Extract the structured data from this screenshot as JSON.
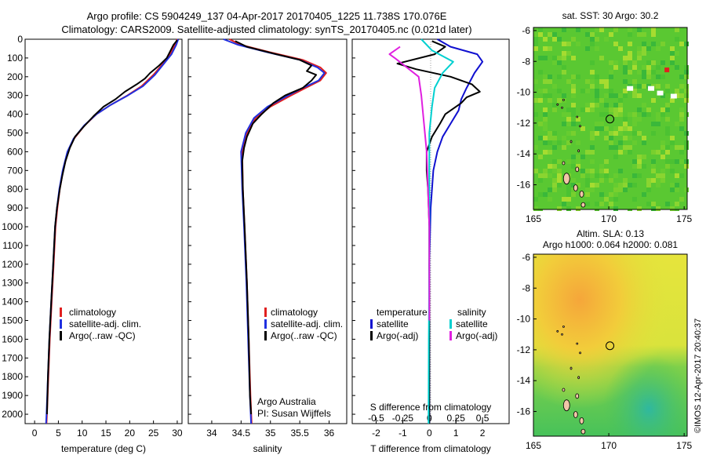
{
  "header": {
    "line1": "Argo profile: CS 5904249_137 04-Apr-2017 20170405_1225 11.738S 170.076E",
    "line2": "Climatology: CARS2009. Satellite-adjusted climatology: synTS_20170405.nc (0.021d later)"
  },
  "credit": "©IMOS 12-Apr-2017 20:40:37",
  "chart_data": [
    {
      "type": "line",
      "xlabel": "temperature (deg C)",
      "xlim": [
        -2,
        31
      ],
      "ylim": [
        2050,
        0
      ],
      "xticks": [
        "0",
        "5",
        "10",
        "15",
        "20",
        "25",
        "30"
      ],
      "yticks": [
        "0",
        "100",
        "200",
        "300",
        "400",
        "500",
        "600",
        "700",
        "800",
        "900",
        "1000",
        "1100",
        "1200",
        "1300",
        "1400",
        "1500",
        "1600",
        "1700",
        "1800",
        "1900",
        "2000"
      ],
      "legend": [
        "climatology",
        "satellite-adj. clim.",
        "Argo(..raw -QC)"
      ],
      "series": [
        {
          "name": "climatology",
          "color": "#e02020",
          "points": [
            [
              30,
              0
            ],
            [
              29.5,
              30
            ],
            [
              28.5,
              80
            ],
            [
              27,
              130
            ],
            [
              25,
              190
            ],
            [
              22.5,
              250
            ],
            [
              19.5,
              300
            ],
            [
              16,
              350
            ],
            [
              13,
              400
            ],
            [
              10.5,
              460
            ],
            [
              8.3,
              530
            ],
            [
              7,
              600
            ],
            [
              6,
              700
            ],
            [
              5.3,
              800
            ],
            [
              4.8,
              900
            ],
            [
              4.4,
              1000
            ],
            [
              4,
              1200
            ],
            [
              3.6,
              1400
            ],
            [
              3.2,
              1600
            ],
            [
              2.9,
              1800
            ],
            [
              2.6,
              2000
            ],
            [
              2.5,
              2050
            ]
          ]
        },
        {
          "name": "satellite-adj. clim.",
          "color": "#2030e0",
          "points": [
            [
              30.2,
              0
            ],
            [
              29.8,
              30
            ],
            [
              28.8,
              80
            ],
            [
              27.2,
              130
            ],
            [
              25.3,
              190
            ],
            [
              22.8,
              250
            ],
            [
              19.6,
              300
            ],
            [
              16,
              350
            ],
            [
              13,
              400
            ],
            [
              10.4,
              460
            ],
            [
              8.2,
              530
            ],
            [
              6.9,
              600
            ],
            [
              5.9,
              700
            ],
            [
              5.2,
              800
            ],
            [
              4.7,
              900
            ],
            [
              4.3,
              1000
            ],
            [
              3.9,
              1200
            ],
            [
              3.5,
              1400
            ],
            [
              3.1,
              1600
            ],
            [
              2.8,
              1800
            ],
            [
              2.5,
              2000
            ],
            [
              2.4,
              2050
            ]
          ]
        },
        {
          "name": "Argo(..raw -QC)",
          "color": "#000000",
          "points": [
            [
              30,
              5
            ],
            [
              29.2,
              30
            ],
            [
              28.6,
              60
            ],
            [
              27.8,
              100
            ],
            [
              26.2,
              140
            ],
            [
              24.3,
              180
            ],
            [
              23.2,
              210
            ],
            [
              21.5,
              240
            ],
            [
              19,
              280
            ],
            [
              17,
              320
            ],
            [
              14.5,
              360
            ],
            [
              12.4,
              410
            ],
            [
              10.2,
              470
            ],
            [
              8.5,
              520
            ],
            [
              7.4,
              580
            ],
            [
              6.5,
              650
            ],
            [
              5.8,
              730
            ],
            [
              5.3,
              800
            ],
            [
              4.7,
              900
            ],
            [
              4.3,
              1000
            ],
            [
              3.9,
              1200
            ],
            [
              3.5,
              1400
            ],
            [
              3.1,
              1600
            ],
            [
              2.8,
              1800
            ],
            [
              2.6,
              2000
            ]
          ]
        }
      ]
    },
    {
      "type": "line",
      "xlabel": "salinity",
      "xlim": [
        33.6,
        36.3
      ],
      "ylim": [
        2050,
        0
      ],
      "xticks": [
        "34",
        "34.5",
        "35",
        "35.5",
        "36"
      ],
      "legend": [
        "climatology",
        "satellite-adj. clim.",
        "Argo(..raw -QC)"
      ],
      "annotation": [
        "Argo Australia",
        "PI: Susan Wijffels"
      ],
      "series": [
        {
          "name": "climatology",
          "color": "#e02020",
          "points": [
            [
              34.3,
              0
            ],
            [
              34.5,
              30
            ],
            [
              35,
              70
            ],
            [
              35.55,
              110
            ],
            [
              35.85,
              150
            ],
            [
              35.95,
              180
            ],
            [
              35.85,
              220
            ],
            [
              35.6,
              260
            ],
            [
              35.35,
              300
            ],
            [
              35,
              360
            ],
            [
              34.75,
              420
            ],
            [
              34.6,
              500
            ],
            [
              34.52,
              600
            ],
            [
              34.53,
              800
            ],
            [
              34.56,
              1000
            ],
            [
              34.6,
              1300
            ],
            [
              34.63,
              1600
            ],
            [
              34.66,
              1900
            ],
            [
              34.68,
              2050
            ]
          ]
        },
        {
          "name": "satellite-adj. clim.",
          "color": "#2030e0",
          "points": [
            [
              34.2,
              0
            ],
            [
              34.45,
              30
            ],
            [
              34.95,
              70
            ],
            [
              35.5,
              110
            ],
            [
              35.8,
              150
            ],
            [
              35.92,
              180
            ],
            [
              35.82,
              220
            ],
            [
              35.55,
              260
            ],
            [
              35.3,
              300
            ],
            [
              34.95,
              360
            ],
            [
              34.72,
              420
            ],
            [
              34.58,
              500
            ],
            [
              34.5,
              600
            ],
            [
              34.52,
              800
            ],
            [
              34.55,
              1000
            ],
            [
              34.59,
              1300
            ],
            [
              34.62,
              1600
            ],
            [
              34.65,
              1900
            ],
            [
              34.67,
              2050
            ]
          ]
        },
        {
          "name": "Argo(..raw -QC)",
          "color": "#000000",
          "points": [
            [
              34.4,
              10
            ],
            [
              34.6,
              40
            ],
            [
              35.1,
              80
            ],
            [
              35.5,
              110
            ],
            [
              35.7,
              140
            ],
            [
              35.62,
              170
            ],
            [
              35.78,
              190
            ],
            [
              35.7,
              220
            ],
            [
              35.55,
              260
            ],
            [
              35.25,
              300
            ],
            [
              35.05,
              340
            ],
            [
              34.85,
              400
            ],
            [
              34.7,
              450
            ],
            [
              34.6,
              520
            ],
            [
              34.55,
              580
            ],
            [
              34.52,
              650
            ],
            [
              34.53,
              800
            ],
            [
              34.56,
              1000
            ],
            [
              34.6,
              1300
            ],
            [
              34.63,
              1600
            ],
            [
              34.65,
              1900
            ],
            [
              34.67,
              2000
            ]
          ]
        }
      ]
    },
    {
      "type": "line",
      "xlabel": "T difference from climatology",
      "xlabel_top": "S difference from climatology",
      "xlim": [
        -2.9,
        3
      ],
      "ylim": [
        2050,
        0
      ],
      "xticks": [
        "-2",
        "-1",
        "0",
        "1",
        "2"
      ],
      "xticks_top": [
        "-0.5",
        "-0.25",
        "0",
        "0.25",
        "0.5"
      ],
      "legend_left": {
        "title": "temperature",
        "items": [
          "satellite",
          "Argo(-adj)"
        ]
      },
      "legend_right": {
        "title": "salinity",
        "items": [
          "satellite",
          "Argo(-adj)"
        ]
      },
      "series": [
        {
          "name": "T satellite",
          "color": "#1010d0",
          "points": [
            [
              0.3,
              0
            ],
            [
              0.8,
              40
            ],
            [
              1.8,
              80
            ],
            [
              2,
              120
            ],
            [
              1.7,
              180
            ],
            [
              1.4,
              260
            ],
            [
              1.2,
              320
            ],
            [
              1.1,
              380
            ],
            [
              0.8,
              450
            ],
            [
              0.5,
              520
            ],
            [
              0.3,
              600
            ],
            [
              0.15,
              700
            ],
            [
              0.05,
              900
            ],
            [
              0,
              1200
            ],
            [
              0,
              1600
            ],
            [
              0,
              2050
            ]
          ]
        },
        {
          "name": "T Argo(-adj)",
          "color": "#000000",
          "points": [
            [
              0.1,
              10
            ],
            [
              0.6,
              40
            ],
            [
              0.2,
              80
            ],
            [
              -1.2,
              130
            ],
            [
              -0.5,
              160
            ],
            [
              0.8,
              200
            ],
            [
              1.6,
              240
            ],
            [
              1.9,
              280
            ],
            [
              1.4,
              310
            ],
            [
              1.2,
              340
            ],
            [
              0.6,
              400
            ],
            [
              0.4,
              450
            ],
            [
              0.1,
              520
            ],
            [
              -0.1,
              600
            ],
            [
              -0.1,
              700
            ],
            [
              -0.05,
              800
            ],
            [
              0,
              1000
            ],
            [
              0,
              1400
            ],
            [
              0,
              1800
            ],
            [
              0,
              2050
            ]
          ]
        },
        {
          "name": "S satellite",
          "color": "#00d0d0",
          "points": [
            [
              -0.3,
              0
            ],
            [
              0.1,
              60
            ],
            [
              0.9,
              120
            ],
            [
              0.5,
              180
            ],
            [
              0.2,
              260
            ],
            [
              0.1,
              360
            ],
            [
              0,
              500
            ],
            [
              0,
              800
            ],
            [
              0,
              1200
            ],
            [
              -0.02,
              1600
            ],
            [
              -0.03,
              2050
            ]
          ]
        },
        {
          "name": "S Argo(-adj)",
          "color": "#e020e0",
          "points": [
            [
              -1.1,
              40
            ],
            [
              -1.5,
              80
            ],
            [
              -1.3,
              100
            ],
            [
              -0.4,
              200
            ],
            [
              -0.3,
              300
            ],
            [
              -0.2,
              450
            ],
            [
              -0.1,
              600
            ],
            [
              -0.05,
              800
            ],
            [
              0,
              1000
            ],
            [
              0,
              1500
            ]
          ]
        }
      ]
    },
    {
      "type": "heatmap",
      "title": "sat. SST: 30  Argo: 30.2",
      "xticks": [
        "165",
        "170",
        "175"
      ],
      "yticks": [
        "-6",
        "-8",
        "-10",
        "-12",
        "-14",
        "-16"
      ],
      "xlim": [
        165,
        175.2
      ],
      "ylim": [
        -17.6,
        -5.8
      ],
      "marker": {
        "lon": 170.076,
        "lat": -11.738
      }
    },
    {
      "type": "heatmap",
      "title": "Altim. SLA: 0.13",
      "subtitle": "Argo h1000: 0.064 h2000: 0.081",
      "xticks": [
        "165",
        "170",
        "175"
      ],
      "yticks": [
        "-6",
        "-8",
        "-10",
        "-12",
        "-14",
        "-16"
      ],
      "xlim": [
        165,
        175.2
      ],
      "ylim": [
        -17.6,
        -5.8
      ],
      "marker": {
        "lon": 170.076,
        "lat": -11.738
      }
    }
  ]
}
